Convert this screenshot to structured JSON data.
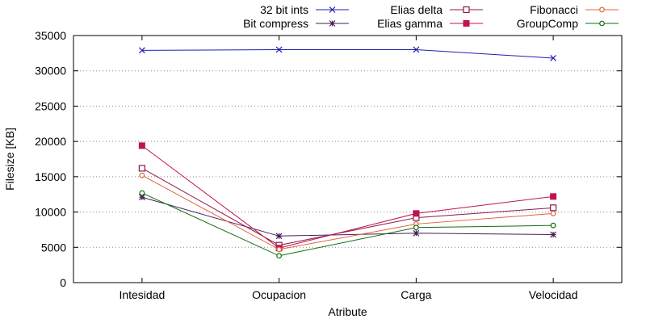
{
  "chart_data": {
    "type": "line",
    "title": "",
    "xlabel": "Atribute",
    "ylabel": "Filesize [KB]",
    "categories": [
      "Intesidad",
      "Ocupacion",
      "Carga",
      "Velocidad"
    ],
    "ylim": [
      0,
      35000
    ],
    "yticks": [
      0,
      5000,
      10000,
      15000,
      20000,
      25000,
      30000,
      35000
    ],
    "grid": "horizontal dotted",
    "legend_position": "top",
    "series": [
      {
        "name": "32 bit ints",
        "color": "#1f1fb4",
        "marker": "x",
        "values": [
          32900,
          33000,
          33000,
          31800
        ]
      },
      {
        "name": "Bit compress",
        "color": "#4a1f5a",
        "marker": "star",
        "values": [
          12100,
          6600,
          7000,
          6800
        ]
      },
      {
        "name": "Elias delta",
        "color": "#8b1a4a",
        "marker": "open-square",
        "values": [
          16200,
          5300,
          9200,
          10600
        ]
      },
      {
        "name": "Elias gamma",
        "color": "#c0134f",
        "marker": "filled-square",
        "values": [
          19400,
          4900,
          9800,
          12200
        ]
      },
      {
        "name": "Fibonacci",
        "color": "#e0643c",
        "marker": "open-circle",
        "values": [
          15200,
          4700,
          8300,
          9800
        ]
      },
      {
        "name": "GroupComp",
        "color": "#0f6e0f",
        "marker": "open-circle",
        "values": [
          12700,
          3800,
          7800,
          8100
        ]
      }
    ]
  }
}
